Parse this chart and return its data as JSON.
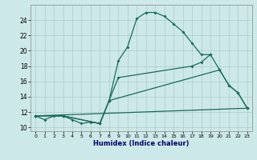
{
  "xlabel": "Humidex (Indice chaleur)",
  "background_color": "#cde8e8",
  "grid_color": "#aacccc",
  "line_color": "#1a6b5a",
  "xlim": [
    -0.5,
    23.5
  ],
  "ylim": [
    9.5,
    26.0
  ],
  "xticks": [
    0,
    1,
    2,
    3,
    4,
    5,
    6,
    7,
    8,
    9,
    10,
    11,
    12,
    13,
    14,
    15,
    16,
    17,
    18,
    19,
    20,
    21,
    22,
    23
  ],
  "yticks": [
    10,
    12,
    14,
    16,
    18,
    20,
    22,
    24
  ],
  "curve1_x": [
    0,
    1,
    2,
    3,
    4,
    5,
    6,
    7,
    8,
    9,
    10,
    11,
    12,
    13,
    14,
    15,
    16,
    17,
    18,
    19
  ],
  "curve1_y": [
    11.5,
    11.0,
    11.5,
    11.5,
    11.0,
    10.5,
    10.7,
    10.5,
    13.5,
    18.7,
    20.5,
    24.2,
    25.0,
    25.0,
    24.5,
    23.5,
    22.5,
    21.0,
    19.5,
    19.5
  ],
  "curve2_x": [
    0,
    3,
    7,
    8,
    9,
    17,
    18,
    19,
    20,
    21,
    22,
    23
  ],
  "curve2_y": [
    11.5,
    11.5,
    10.5,
    13.5,
    16.5,
    18.0,
    18.5,
    19.5,
    17.5,
    15.5,
    14.5,
    12.5
  ],
  "curve3_x": [
    0,
    3,
    7,
    8,
    20,
    21,
    22,
    23
  ],
  "curve3_y": [
    11.5,
    11.5,
    10.5,
    13.5,
    17.5,
    15.5,
    14.5,
    12.5
  ],
  "line_x": [
    0,
    23
  ],
  "line_y": [
    11.5,
    12.5
  ]
}
